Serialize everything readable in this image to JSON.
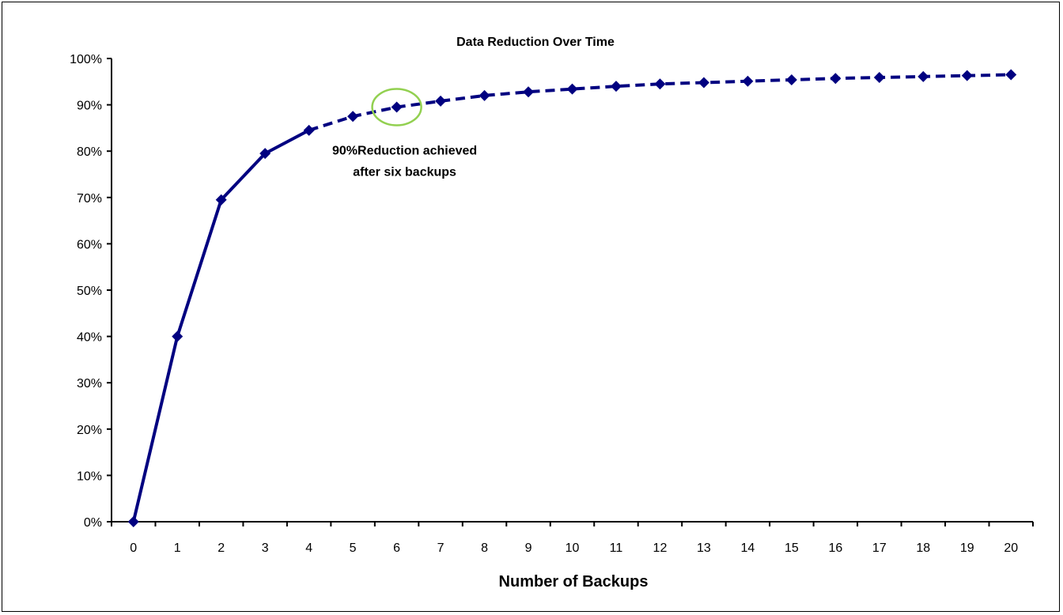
{
  "chart_data": {
    "type": "line",
    "title": "Data Reduction Over Time",
    "xlabel": "Number of Backups",
    "ylabel": "",
    "x": [
      0,
      1,
      2,
      3,
      4,
      5,
      6,
      7,
      8,
      9,
      10,
      11,
      12,
      13,
      14,
      15,
      16,
      17,
      18,
      19,
      20
    ],
    "series": [
      {
        "values": [
          0,
          0.4,
          0.695,
          0.795,
          0.845,
          0.875,
          0.895,
          0.908,
          0.92,
          0.928,
          0.934,
          0.94,
          0.945,
          0.948,
          0.951,
          0.954,
          0.957,
          0.959,
          0.961,
          0.963,
          0.965
        ],
        "color": "#000080",
        "marker": "diamond",
        "solid_until_x": 4,
        "dashed_after_x": 4
      }
    ],
    "ylim": [
      0,
      1
    ],
    "yticks": [
      "0%",
      "10%",
      "20%",
      "30%",
      "40%",
      "50%",
      "60%",
      "70%",
      "80%",
      "90%",
      "100%"
    ],
    "xticks": [
      "0",
      "1",
      "2",
      "3",
      "4",
      "5",
      "6",
      "7",
      "8",
      "9",
      "10",
      "11",
      "12",
      "13",
      "14",
      "15",
      "16",
      "17",
      "18",
      "19",
      "20"
    ],
    "grid": false,
    "annotation": {
      "x": 6,
      "line1": "90%Reduction achieved",
      "line2": "after six backups",
      "circle_color": "#92D050"
    }
  }
}
